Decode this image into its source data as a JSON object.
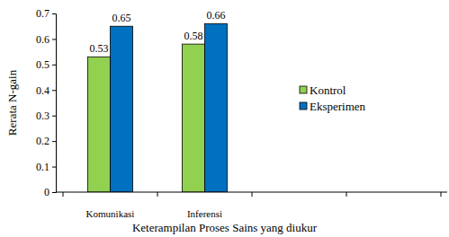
{
  "chart_data": {
    "type": "bar",
    "x_label": "Keterampilan Proses Sains yang diukur",
    "y_label": "Rerata N-gain",
    "categories": [
      "Komunikasi",
      "Inferensi",
      null,
      null
    ],
    "series": [
      {
        "name": "Kontrol",
        "color": "#92d050",
        "values": [
          0.53,
          0.58,
          null,
          null
        ]
      },
      {
        "name": "Eksperimen",
        "color": "#0070c0",
        "values": [
          0.65,
          0.66,
          null,
          null
        ]
      }
    ],
    "ylim": [
      0,
      0.7
    ],
    "yticks": [
      0,
      0.1,
      0.2,
      0.3,
      0.4,
      0.5,
      0.6,
      0.7
    ],
    "grid": false,
    "data_labels": true,
    "legend": "right"
  }
}
